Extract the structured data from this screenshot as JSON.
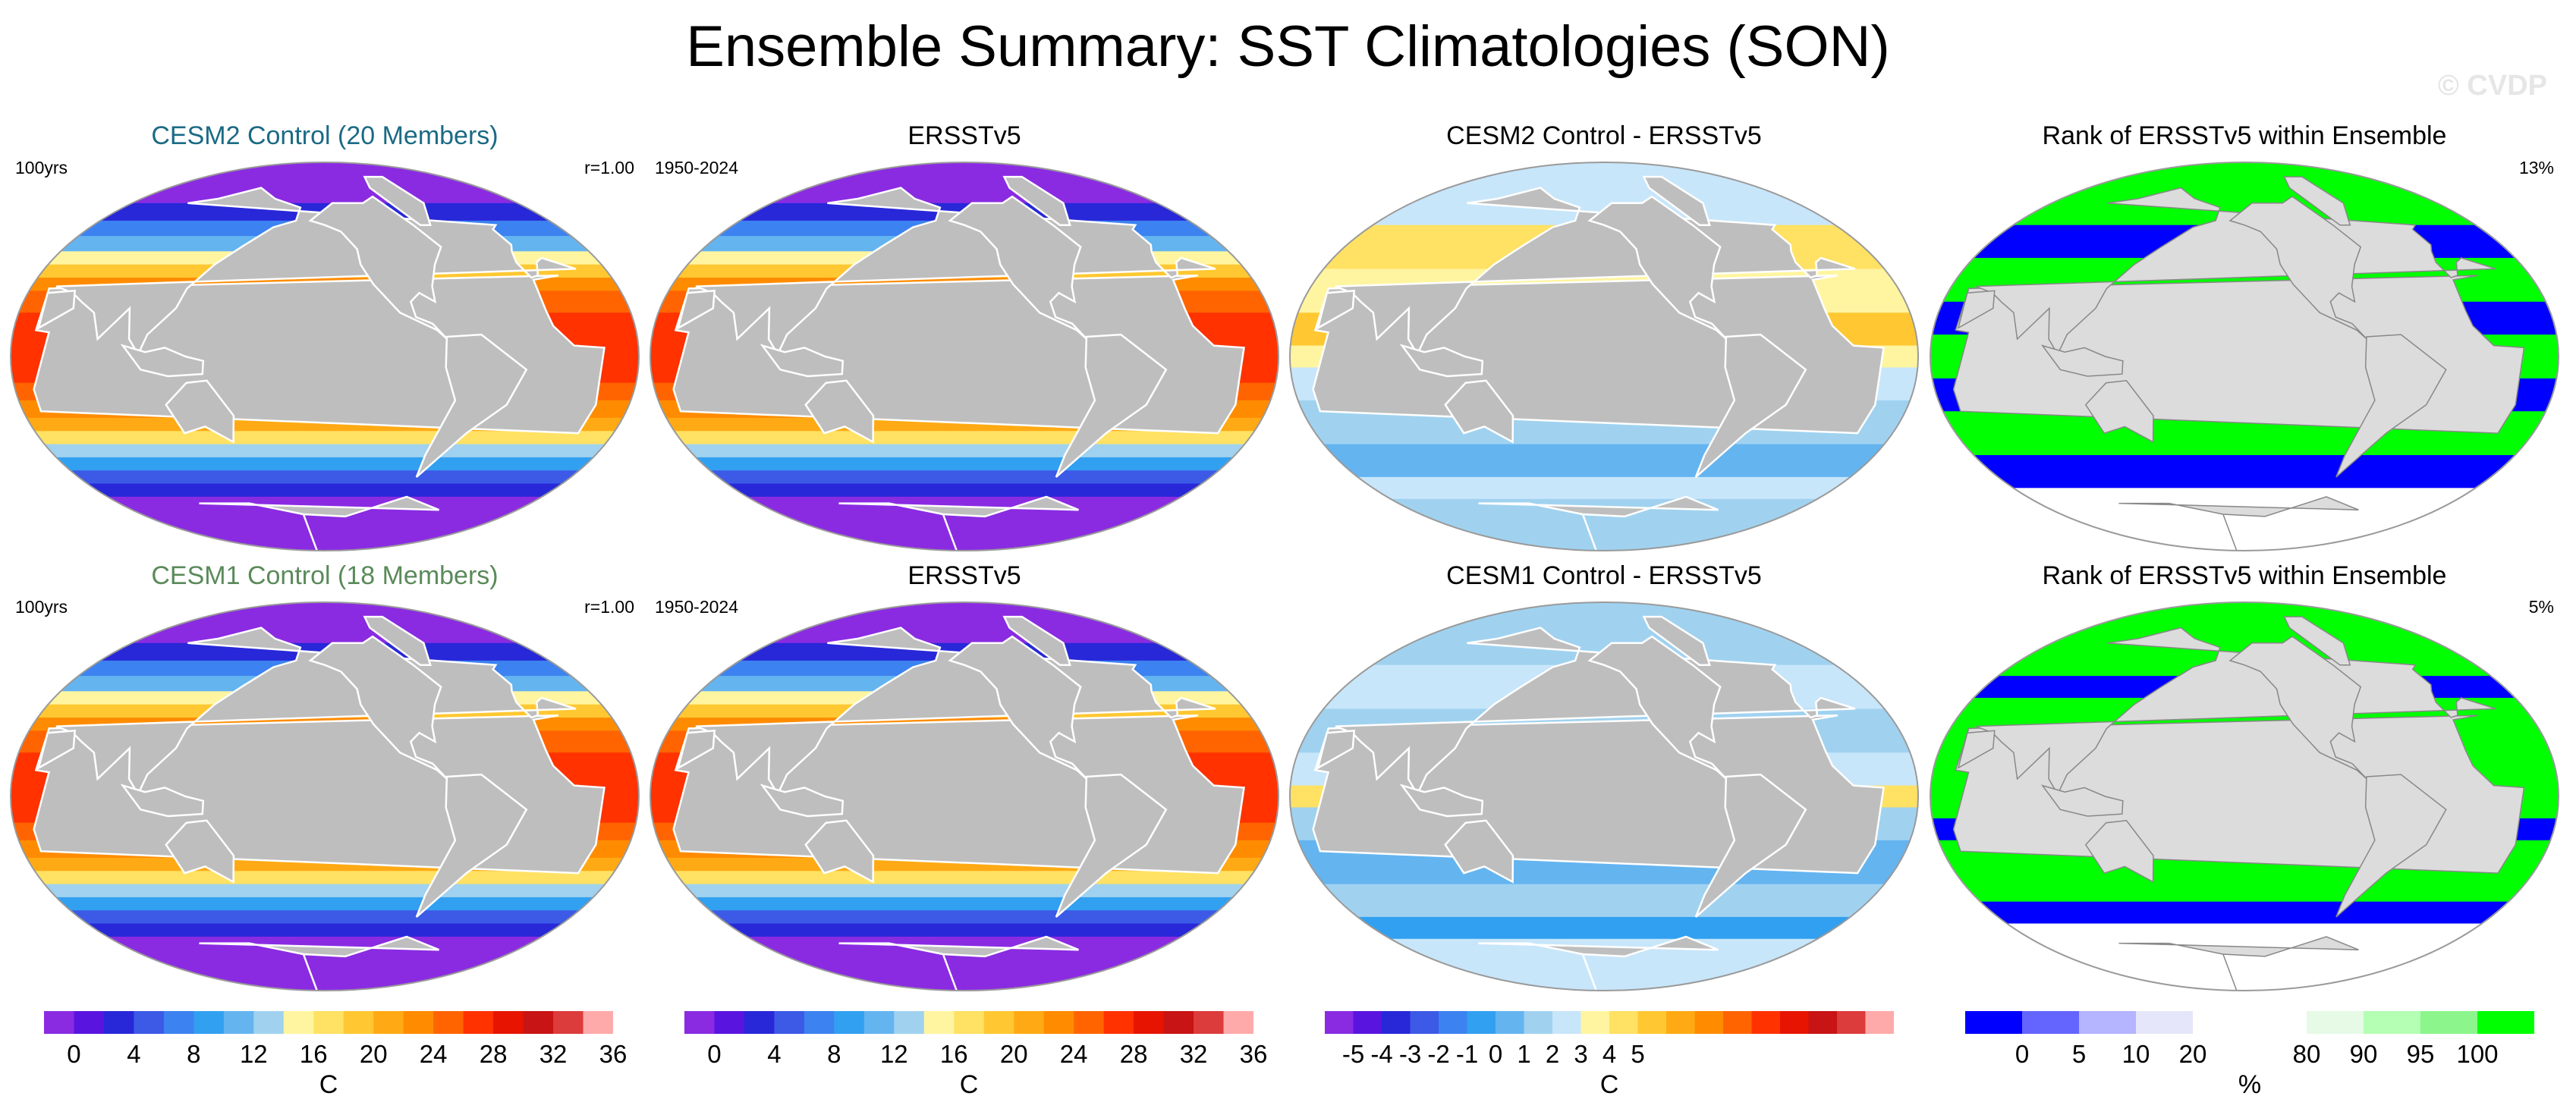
{
  "title": "Ensemble Summary: SST Climatologies (SON)",
  "watermark": "© CVDP",
  "colors": {
    "title_cesm2": "#1b6a85",
    "title_cesm1": "#5a8a5a",
    "land": "#bebebe",
    "land_light": "#dcdcdc",
    "coast": "#ffffff"
  },
  "rows": [
    {
      "panels": [
        {
          "kind": "sst",
          "title": "CESM2 Control (20 Members)",
          "left_label": "100yrs",
          "right_label": "r=1.00"
        },
        {
          "kind": "sst",
          "title": "ERSSTv5",
          "left_label": "1950-2024",
          "right_label": ""
        },
        {
          "kind": "diff",
          "title": "CESM2 Control - ERSSTv5",
          "left_label": "",
          "right_label": "",
          "bias": 0.5
        },
        {
          "kind": "rank",
          "title": "Rank of ERSSTv5 within Ensemble",
          "left_label": "",
          "right_label": "13%",
          "green_frac": 0.55
        }
      ]
    },
    {
      "panels": [
        {
          "kind": "sst",
          "title": "CESM1 Control (18 Members)",
          "left_label": "100yrs",
          "right_label": "r=1.00"
        },
        {
          "kind": "sst",
          "title": "ERSSTv5",
          "left_label": "1950-2024",
          "right_label": ""
        },
        {
          "kind": "diff",
          "title": "CESM1 Control - ERSSTv5",
          "left_label": "",
          "right_label": "",
          "bias": -0.6
        },
        {
          "kind": "rank",
          "title": "Rank of ERSSTv5 within Ensemble",
          "left_label": "",
          "right_label": "5%",
          "green_frac": 0.8
        }
      ]
    }
  ],
  "colorbars": [
    {
      "unit": "C",
      "colors": [
        "#8a2be2",
        "#5a14e0",
        "#2828d8",
        "#3c5ae6",
        "#3c82f0",
        "#32a0f0",
        "#64b4f0",
        "#a0d2f0",
        "#fff5a0",
        "#ffe164",
        "#ffc832",
        "#ffaa14",
        "#ff8c00",
        "#ff6400",
        "#ff3200",
        "#e61400",
        "#c81414",
        "#dc3c3c",
        "#ffaaaa"
      ],
      "labels": [
        {
          "text": "0",
          "pos": 1
        },
        {
          "text": "4",
          "pos": 3
        },
        {
          "text": "8",
          "pos": 5
        },
        {
          "text": "12",
          "pos": 7
        },
        {
          "text": "16",
          "pos": 9
        },
        {
          "text": "20",
          "pos": 11
        },
        {
          "text": "24",
          "pos": 13
        },
        {
          "text": "28",
          "pos": 15
        },
        {
          "text": "32",
          "pos": 17
        },
        {
          "text": "36",
          "pos": 19
        }
      ]
    },
    {
      "unit": "C",
      "colors": [
        "#8a2be2",
        "#5a14e0",
        "#2828d8",
        "#3c5ae6",
        "#3c82f0",
        "#32a0f0",
        "#64b4f0",
        "#a0d2f0",
        "#fff5a0",
        "#ffe164",
        "#ffc832",
        "#ffaa14",
        "#ff8c00",
        "#ff6400",
        "#ff3200",
        "#e61400",
        "#c81414",
        "#dc3c3c",
        "#ffaaaa"
      ],
      "labels": [
        {
          "text": "0",
          "pos": 1
        },
        {
          "text": "4",
          "pos": 3
        },
        {
          "text": "8",
          "pos": 5
        },
        {
          "text": "12",
          "pos": 7
        },
        {
          "text": "16",
          "pos": 9
        },
        {
          "text": "20",
          "pos": 11
        },
        {
          "text": "24",
          "pos": 13
        },
        {
          "text": "28",
          "pos": 15
        },
        {
          "text": "32",
          "pos": 17
        },
        {
          "text": "36",
          "pos": 19
        }
      ]
    },
    {
      "unit": "C",
      "colors": [
        "#8a2be2",
        "#5a14e0",
        "#2828d8",
        "#3c5ae6",
        "#3c82f0",
        "#32a0f0",
        "#64b4f0",
        "#a0d2f0",
        "#c8e6fa",
        "#fff5a0",
        "#ffe164",
        "#ffc832",
        "#ffaa14",
        "#ff8c00",
        "#ff6400",
        "#ff3200",
        "#e61400",
        "#c81414",
        "#dc3c3c",
        "#ffaaaa"
      ],
      "labels": [
        {
          "text": "-5",
          "pos": 1
        },
        {
          "text": "-4",
          "pos": 2
        },
        {
          "text": "-3",
          "pos": 3
        },
        {
          "text": "-2",
          "pos": 4
        },
        {
          "text": "-1",
          "pos": 5
        },
        {
          "text": "0",
          "pos": 6
        },
        {
          "text": "1",
          "pos": 7
        },
        {
          "text": "2",
          "pos": 8
        },
        {
          "text": "3",
          "pos": 9
        },
        {
          "text": "4",
          "pos": 10
        },
        {
          "text": "5",
          "pos": 11
        }
      ]
    },
    {
      "unit": "%",
      "colors": [
        "#0000ff",
        "#6464ff",
        "#b4b4ff",
        "#e6e6fa",
        "#ffffff",
        "#ffffff",
        "#e6fae6",
        "#b4ffb4",
        "#8cf58c",
        "#00ff00"
      ],
      "labels": [
        {
          "text": "0",
          "pos": 1
        },
        {
          "text": "5",
          "pos": 2
        },
        {
          "text": "10",
          "pos": 3
        },
        {
          "text": "20",
          "pos": 4
        },
        {
          "text": "80",
          "pos": 6
        },
        {
          "text": "90",
          "pos": 7
        },
        {
          "text": "95",
          "pos": 8
        },
        {
          "text": "100",
          "pos": 9
        }
      ]
    }
  ]
}
